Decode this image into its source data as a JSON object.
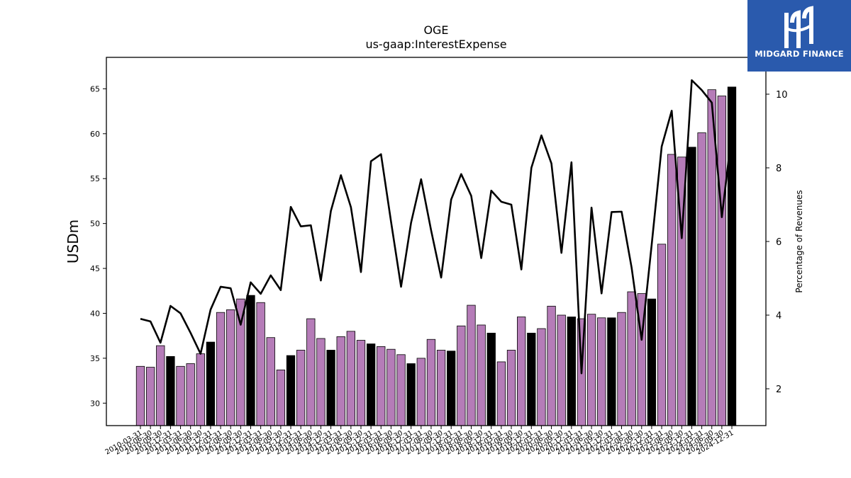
{
  "logo": {
    "text": "MIDGARD FINANCE"
  },
  "chart_data": {
    "type": "bar",
    "title": "OGE",
    "subtitle": "us-gaap:InterestExpense",
    "ylabel": "USDm",
    "y2label": "Percentage of Revenues",
    "ylim": [
      27.5,
      68.5
    ],
    "y2lim": [
      1.0,
      11.0
    ],
    "yticks": [
      30,
      35,
      40,
      45,
      50,
      55,
      60,
      65
    ],
    "y2ticks": [
      2,
      4,
      6,
      8,
      10
    ],
    "colors": {
      "quarter": "#b57cb8",
      "year_end": "#000000",
      "line": "#000000"
    },
    "categories": [
      "2010-03-31",
      "2010-06-30",
      "2010-09-30",
      "2010-12-31",
      "2011-03-31",
      "2011-06-30",
      "2011-09-30",
      "2011-12-31",
      "2012-03-31",
      "2012-06-30",
      "2012-09-30",
      "2012-12-31",
      "2013-03-31",
      "2013-06-30",
      "2013-09-30",
      "2013-12-31",
      "2014-03-31",
      "2014-06-30",
      "2014-09-30",
      "2014-12-31",
      "2015-03-31",
      "2015-06-30",
      "2015-09-30",
      "2015-12-31",
      "2016-03-31",
      "2016-06-30",
      "2016-09-30",
      "2016-12-31",
      "2017-03-31",
      "2017-06-30",
      "2017-09-30",
      "2017-12-31",
      "2018-03-31",
      "2018-06-30",
      "2018-09-30",
      "2018-12-31",
      "2019-03-31",
      "2019-06-30",
      "2019-09-30",
      "2019-12-31",
      "2020-03-31",
      "2020-06-30",
      "2020-09-30",
      "2020-12-31",
      "2021-03-31",
      "2021-06-30",
      "2021-09-30",
      "2021-12-31",
      "2022-03-31",
      "2022-06-30",
      "2022-09-30",
      "2022-12-31",
      "2023-03-31",
      "2023-06-30",
      "2023-09-30",
      "2023-12-31",
      "2024-03-31",
      "2024-06-30",
      "2024-09-30",
      "2024-12-31"
    ],
    "series": [
      {
        "type": "bar",
        "values": [
          34.1,
          34.0,
          36.4,
          35.2,
          34.1,
          34.4,
          35.5,
          36.8,
          40.1,
          40.4,
          41.6,
          42.0,
          41.2,
          37.3,
          33.7,
          35.3,
          35.9,
          39.4,
          37.2,
          35.9,
          37.4,
          38.0,
          37.0,
          36.6,
          36.3,
          36.0,
          35.4,
          34.4,
          35.0,
          37.1,
          35.9,
          35.8,
          38.6,
          40.9,
          38.7,
          37.8,
          34.6,
          35.9,
          39.6,
          37.8,
          38.3,
          40.8,
          39.8,
          39.6,
          39.4,
          39.9,
          39.5,
          39.5,
          40.1,
          42.4,
          42.2,
          41.6,
          47.7,
          57.7,
          57.4,
          58.5,
          60.1,
          64.9,
          64.2,
          65.2
        ]
      },
      {
        "type": "line",
        "values": [
          3.9,
          3.83,
          3.25,
          4.25,
          4.05,
          3.52,
          2.95,
          4.15,
          4.77,
          4.73,
          3.74,
          4.89,
          4.58,
          5.08,
          4.68,
          6.94,
          6.41,
          6.44,
          4.94,
          6.83,
          7.8,
          6.93,
          5.17,
          8.18,
          8.37,
          6.54,
          4.77,
          6.51,
          7.69,
          6.3,
          5.02,
          7.14,
          7.83,
          7.24,
          5.55,
          7.38,
          7.08,
          7.0,
          5.24,
          8.0,
          8.88,
          8.12,
          5.69,
          8.15,
          2.42,
          6.92,
          4.59,
          6.8,
          6.81,
          5.29,
          3.33,
          5.91,
          8.58,
          9.55,
          6.09,
          10.38,
          10.11,
          9.77,
          6.66,
          8.96
        ]
      }
    ],
    "year_end_indices": [
      3,
      7,
      11,
      15,
      19,
      23,
      27,
      31,
      35,
      39,
      43,
      47,
      51,
      55,
      59
    ],
    "grid": false,
    "legend": "none"
  }
}
